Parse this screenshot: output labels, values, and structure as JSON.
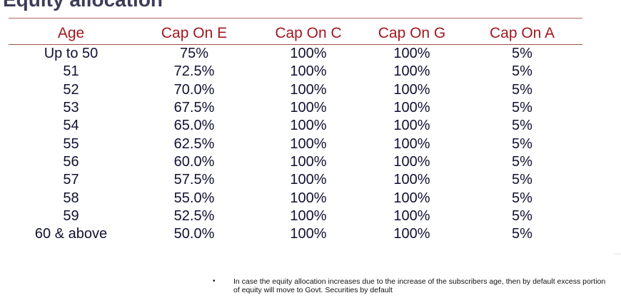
{
  "slide": {
    "title": "Equity allocation"
  },
  "table": {
    "headers": [
      "Age",
      "Cap On E",
      "Cap On C",
      "Cap On G",
      "Cap On A"
    ],
    "rows": [
      [
        "Up to 50",
        "75%",
        "100%",
        "100%",
        "5%"
      ],
      [
        "51",
        "72.5%",
        "100%",
        "100%",
        "5%"
      ],
      [
        "52",
        "70.0%",
        "100%",
        "100%",
        "5%"
      ],
      [
        "53",
        "67.5%",
        "100%",
        "100%",
        "5%"
      ],
      [
        "54",
        "65.0%",
        "100%",
        "100%",
        "5%"
      ],
      [
        "55",
        "62.5%",
        "100%",
        "100%",
        "5%"
      ],
      [
        "56",
        "60.0%",
        "100%",
        "100%",
        "5%"
      ],
      [
        "57",
        "57.5%",
        "100%",
        "100%",
        "5%"
      ],
      [
        "58",
        "55.0%",
        "100%",
        "100%",
        "5%"
      ],
      [
        "59",
        "52.5%",
        "100%",
        "100%",
        "5%"
      ],
      [
        "60 & above",
        "50.0%",
        "100%",
        "100%",
        "5%"
      ]
    ]
  },
  "note": {
    "bullet": "•",
    "text": "In case the equity allocation increases due to the increase of the subscribers age, then by default excess portion of equity will move to Govt. Securities by default"
  },
  "colors": {
    "header_text": "#a0181f",
    "body_text": "#111133",
    "rule": "#9c4f4a"
  }
}
